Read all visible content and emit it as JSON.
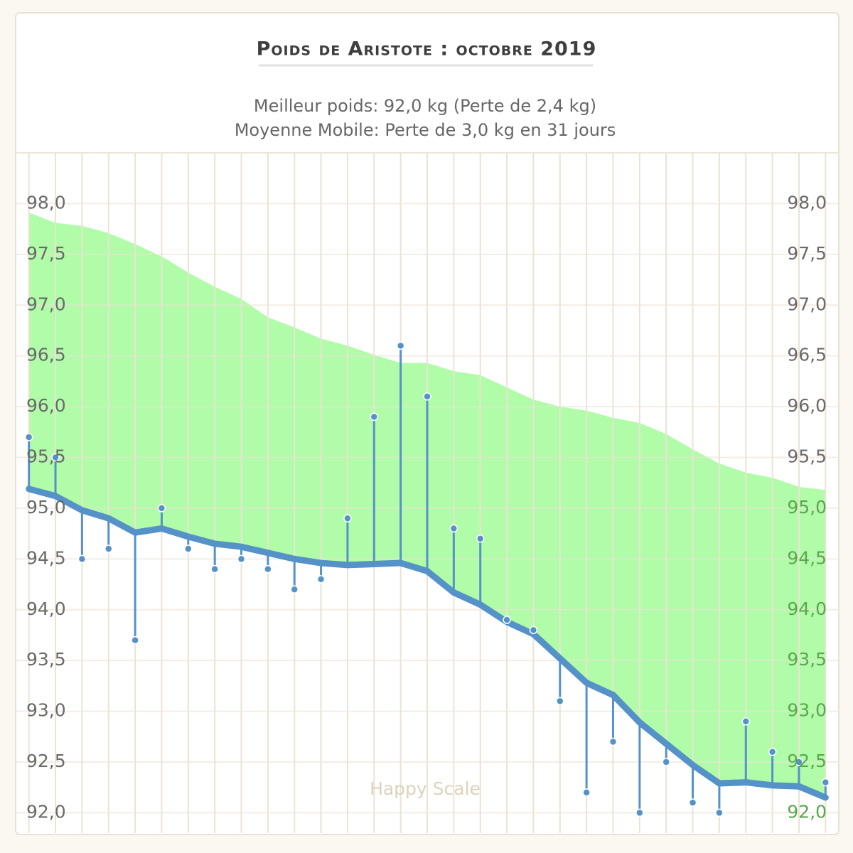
{
  "chart_data": {
    "type": "line",
    "title": "Poids de Aristote : octobre 2019",
    "subtitle": [
      "Meilleur poids: 92,0 kg (Perte de 2,4 kg)",
      "Moyenne Mobile: Perte de 3,0 kg en 31 jours"
    ],
    "watermark": "Happy Scale",
    "categories": [
      null,
      null,
      null,
      null,
      null,
      null,
      null,
      null,
      null,
      null,
      null,
      null,
      null,
      null,
      null,
      null,
      null,
      null,
      null,
      null,
      null,
      null,
      null,
      null,
      null,
      null,
      null,
      null,
      null,
      null,
      null
    ],
    "series": [
      {
        "kind": "area",
        "color": "#b0fca8",
        "values": [
          97.91,
          97.81,
          97.78,
          97.71,
          97.6,
          97.48,
          97.32,
          97.18,
          97.06,
          96.88,
          96.78,
          96.67,
          96.6,
          96.51,
          96.43,
          96.43,
          96.35,
          96.31,
          96.19,
          96.07,
          96.0,
          95.96,
          95.89,
          95.84,
          95.73,
          95.58,
          95.44,
          95.35,
          95.3,
          95.21,
          95.18
        ]
      },
      {
        "kind": "line",
        "color": "#5592c8",
        "values": [
          95.19,
          95.12,
          94.98,
          94.9,
          94.76,
          94.8,
          94.72,
          94.65,
          94.62,
          94.56,
          94.5,
          94.46,
          94.44,
          94.45,
          94.46,
          94.38,
          94.17,
          94.05,
          93.88,
          93.76,
          93.52,
          93.28,
          93.16,
          92.89,
          92.68,
          92.47,
          92.29,
          92.3,
          92.27,
          92.26,
          92.15
        ]
      },
      {
        "kind": "stem",
        "color": "#5592c8",
        "values": [
          95.7,
          95.5,
          94.5,
          94.6,
          93.7,
          95.0,
          94.6,
          94.4,
          94.5,
          94.4,
          94.2,
          94.3,
          94.9,
          95.9,
          96.6,
          96.1,
          94.8,
          94.7,
          93.9,
          93.8,
          93.1,
          92.2,
          92.7,
          92.0,
          92.5,
          92.1,
          92.0,
          92.9,
          92.6,
          92.5,
          92.3
        ]
      }
    ],
    "ylim": [
      91.8,
      98.5
    ],
    "yticks": [
      {
        "value": 92,
        "label": "92,0"
      },
      {
        "value": 92.5,
        "label": "92,5"
      },
      {
        "value": 93,
        "label": "93,0"
      },
      {
        "value": 93.5,
        "label": "93,5"
      },
      {
        "value": 94,
        "label": "94,0"
      },
      {
        "value": 94.5,
        "label": "94,5"
      },
      {
        "value": 95,
        "label": "95,0"
      },
      {
        "value": 95.5,
        "label": "95,5"
      },
      {
        "value": 96,
        "label": "96,0"
      },
      {
        "value": 96.5,
        "label": "96,5"
      },
      {
        "value": 97,
        "label": "97,0"
      },
      {
        "value": 97.5,
        "label": "97,5"
      },
      {
        "value": 98,
        "label": "98,0"
      }
    ],
    "grid": true
  }
}
